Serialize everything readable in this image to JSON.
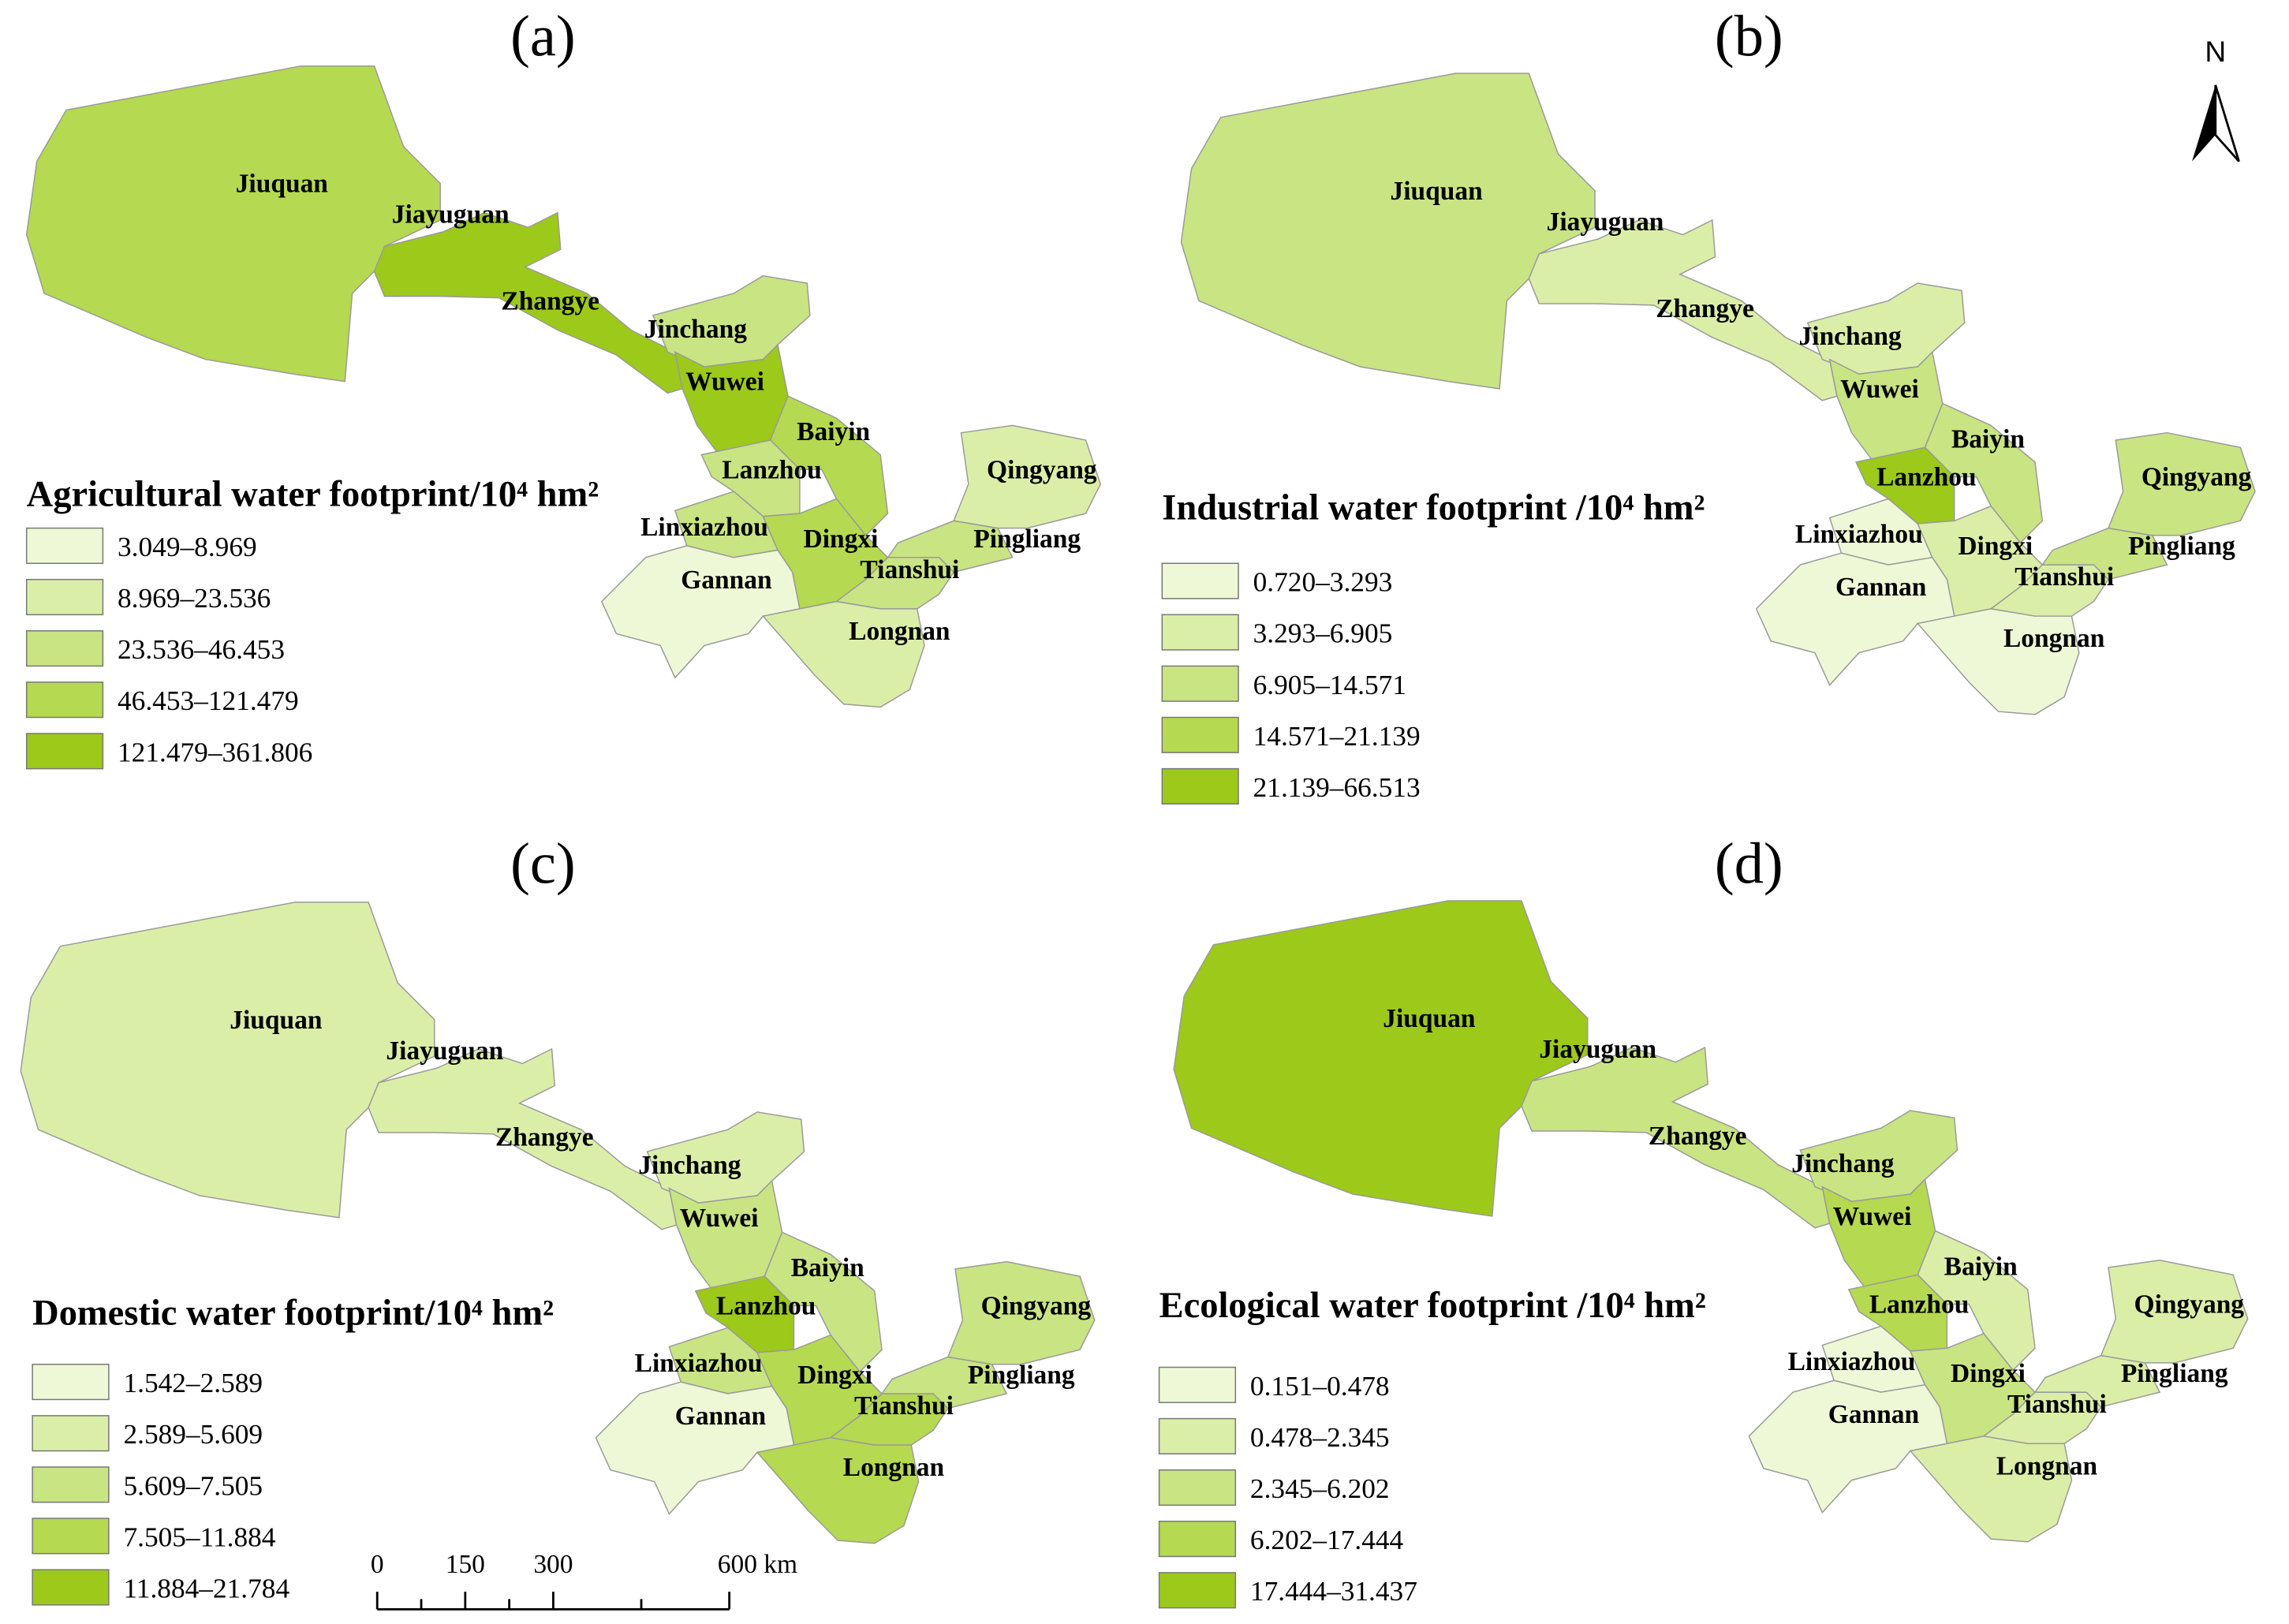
{
  "north": "N",
  "scale_bar": {
    "labels": [
      "0",
      "150",
      "300",
      "600 km"
    ]
  },
  "panels": [
    {
      "label": "(a)",
      "legend_title": "Agricultural water footprint/10⁴ hm²",
      "classes": [
        {
          "label": "3.049–8.969",
          "color": "#eef8d6"
        },
        {
          "label": "8.969–23.536",
          "color": "#dbeea8"
        },
        {
          "label": "23.536–46.453",
          "color": "#c9e482"
        },
        {
          "label": "46.453–121.479",
          "color": "#b5d950"
        },
        {
          "label": "121.479–361.806",
          "color": "#9cc91a"
        }
      ],
      "regions": [
        {
          "name": "Jiuquan",
          "color": "#b5d950"
        },
        {
          "name": "Jiayuguan",
          "color": "#eef8d6"
        },
        {
          "name": "Zhangye",
          "color": "#9cc91a"
        },
        {
          "name": "Jinchang",
          "color": "#c9e482"
        },
        {
          "name": "Wuwei",
          "color": "#9cc91a"
        },
        {
          "name": "Baiyin",
          "color": "#b5d950"
        },
        {
          "name": "Lanzhou",
          "color": "#c9e482"
        },
        {
          "name": "Linxiazhou",
          "color": "#c9e482"
        },
        {
          "name": "Dingxi",
          "color": "#b5d950"
        },
        {
          "name": "Gannan",
          "color": "#eef8d6"
        },
        {
          "name": "Tianshui",
          "color": "#c9e482"
        },
        {
          "name": "Longnan",
          "color": "#dbeea8"
        },
        {
          "name": "Pingliang",
          "color": "#c9e482"
        },
        {
          "name": "Qingyang",
          "color": "#dbeea8"
        }
      ]
    },
    {
      "label": "(b)",
      "legend_title": "Industrial water footprint /10⁴ hm²",
      "classes": [
        {
          "label": "0.720–3.293",
          "color": "#eef8d6"
        },
        {
          "label": "3.293–6.905",
          "color": "#dbeea8"
        },
        {
          "label": "6.905–14.571",
          "color": "#c9e482"
        },
        {
          "label": "14.571–21.139",
          "color": "#b5d950"
        },
        {
          "label": "21.139–66.513",
          "color": "#9cc91a"
        }
      ],
      "regions": [
        {
          "name": "Jiuquan",
          "color": "#c9e482"
        },
        {
          "name": "Jiayuguan",
          "color": "#c9e482"
        },
        {
          "name": "Zhangye",
          "color": "#dbeea8"
        },
        {
          "name": "Jinchang",
          "color": "#dbeea8"
        },
        {
          "name": "Wuwei",
          "color": "#c9e482"
        },
        {
          "name": "Baiyin",
          "color": "#c9e482"
        },
        {
          "name": "Lanzhou",
          "color": "#9cc91a"
        },
        {
          "name": "Linxiazhou",
          "color": "#eef8d6"
        },
        {
          "name": "Dingxi",
          "color": "#dbeea8"
        },
        {
          "name": "Gannan",
          "color": "#eef8d6"
        },
        {
          "name": "Tianshui",
          "color": "#dbeea8"
        },
        {
          "name": "Longnan",
          "color": "#eef8d6"
        },
        {
          "name": "Pingliang",
          "color": "#c9e482"
        },
        {
          "name": "Qingyang",
          "color": "#c9e482"
        }
      ]
    },
    {
      "label": "(c)",
      "legend_title": "Domestic water footprint/10⁴ hm²",
      "classes": [
        {
          "label": "1.542–2.589",
          "color": "#eef8d6"
        },
        {
          "label": "2.589–5.609",
          "color": "#dbeea8"
        },
        {
          "label": "5.609–7.505",
          "color": "#c9e482"
        },
        {
          "label": "7.505–11.884",
          "color": "#b5d950"
        },
        {
          "label": "11.884–21.784",
          "color": "#9cc91a"
        }
      ],
      "regions": [
        {
          "name": "Jiuquan",
          "color": "#dbeea8"
        },
        {
          "name": "Jiayuguan",
          "color": "#dbeea8"
        },
        {
          "name": "Zhangye",
          "color": "#dbeea8"
        },
        {
          "name": "Jinchang",
          "color": "#dbeea8"
        },
        {
          "name": "Wuwei",
          "color": "#c9e482"
        },
        {
          "name": "Baiyin",
          "color": "#c9e482"
        },
        {
          "name": "Lanzhou",
          "color": "#9cc91a"
        },
        {
          "name": "Linxiazhou",
          "color": "#c9e482"
        },
        {
          "name": "Dingxi",
          "color": "#b5d950"
        },
        {
          "name": "Gannan",
          "color": "#eef8d6"
        },
        {
          "name": "Tianshui",
          "color": "#b5d950"
        },
        {
          "name": "Longnan",
          "color": "#b5d950"
        },
        {
          "name": "Pingliang",
          "color": "#c9e482"
        },
        {
          "name": "Qingyang",
          "color": "#c9e482"
        }
      ]
    },
    {
      "label": "(d)",
      "legend_title": "Ecological water footprint /10⁴ hm²",
      "classes": [
        {
          "label": "0.151–0.478",
          "color": "#eef8d6"
        },
        {
          "label": "0.478–2.345",
          "color": "#dbeea8"
        },
        {
          "label": "2.345–6.202",
          "color": "#c9e482"
        },
        {
          "label": "6.202–17.444",
          "color": "#b5d950"
        },
        {
          "label": "17.444–31.437",
          "color": "#9cc91a"
        }
      ],
      "regions": [
        {
          "name": "Jiuquan",
          "color": "#9cc91a"
        },
        {
          "name": "Jiayuguan",
          "color": "#b5d950"
        },
        {
          "name": "Zhangye",
          "color": "#c9e482"
        },
        {
          "name": "Jinchang",
          "color": "#c9e482"
        },
        {
          "name": "Wuwei",
          "color": "#b5d950"
        },
        {
          "name": "Baiyin",
          "color": "#dbeea8"
        },
        {
          "name": "Lanzhou",
          "color": "#b5d950"
        },
        {
          "name": "Linxiazhou",
          "color": "#eef8d6"
        },
        {
          "name": "Dingxi",
          "color": "#c9e482"
        },
        {
          "name": "Gannan",
          "color": "#eef8d6"
        },
        {
          "name": "Tianshui",
          "color": "#dbeea8"
        },
        {
          "name": "Longnan",
          "color": "#dbeea8"
        },
        {
          "name": "Pingliang",
          "color": "#dbeea8"
        },
        {
          "name": "Qingyang",
          "color": "#dbeea8"
        }
      ]
    }
  ]
}
